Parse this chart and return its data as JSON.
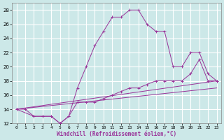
{
  "xlabel": "Windchill (Refroidissement éolien,°C)",
  "bg_color": "#cce8e8",
  "grid_color": "#ffffff",
  "line_color": "#993399",
  "xlim": [
    -0.5,
    23.5
  ],
  "ylim": [
    12,
    29
  ],
  "yticks": [
    12,
    14,
    16,
    18,
    20,
    22,
    24,
    26,
    28
  ],
  "xticks": [
    0,
    1,
    2,
    3,
    4,
    5,
    6,
    7,
    8,
    9,
    10,
    11,
    12,
    13,
    14,
    15,
    16,
    17,
    18,
    19,
    20,
    21,
    22,
    23
  ],
  "peak_x": [
    0,
    1,
    2,
    3,
    4,
    5,
    6,
    7,
    8,
    9,
    10,
    11,
    12,
    13,
    14,
    15,
    16,
    17,
    18,
    19,
    20,
    21,
    22,
    23
  ],
  "peak_y": [
    14,
    14,
    13,
    13,
    13,
    12,
    13,
    17,
    20,
    23,
    25,
    27,
    27,
    28,
    28,
    26,
    25,
    25,
    20,
    20,
    22,
    22,
    19,
    18
  ],
  "line2_x": [
    0,
    2,
    3,
    4,
    5,
    6,
    7,
    8,
    9,
    10,
    11,
    12,
    13,
    14,
    15,
    16,
    17,
    18,
    19,
    20,
    21,
    22,
    23
  ],
  "line2_y": [
    14,
    13,
    13,
    13,
    12,
    13,
    15,
    15,
    15,
    15.5,
    16,
    16.5,
    17,
    17,
    17.5,
    18,
    18,
    18,
    18,
    19,
    21,
    18,
    18
  ],
  "line3_x": [
    0,
    23
  ],
  "line3_y": [
    14,
    18
  ],
  "line4_x": [
    0,
    23
  ],
  "line4_y": [
    14,
    17
  ]
}
